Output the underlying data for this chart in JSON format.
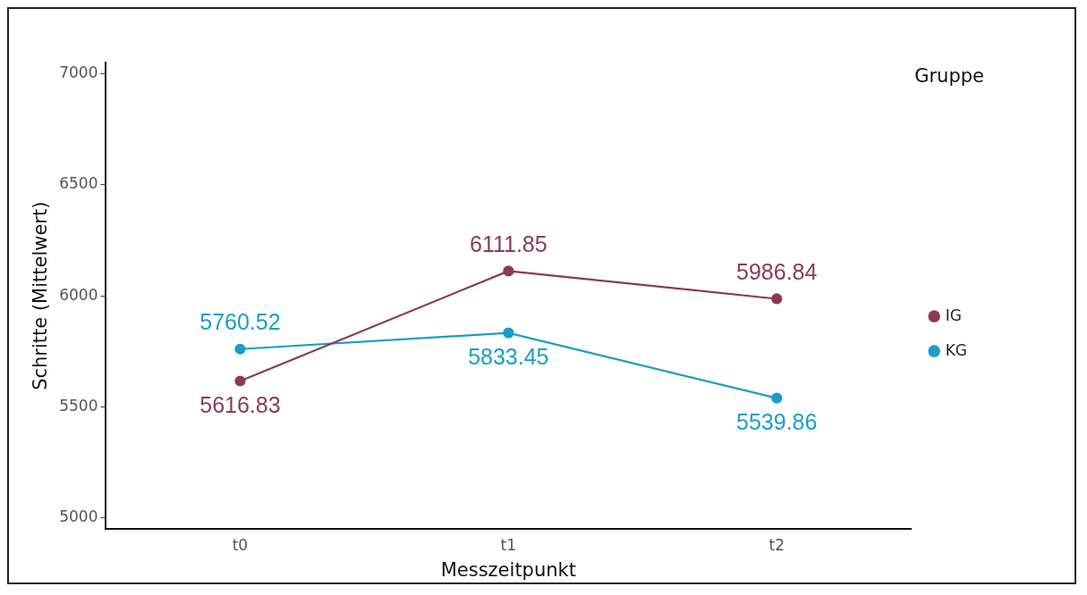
{
  "chart_data": {
    "type": "line",
    "xlabel": "Messzeitpunkt",
    "ylabel": "Schritte (Mittelwert)",
    "legend_title": "Gruppe",
    "categories": [
      "t0",
      "t1",
      "t2"
    ],
    "series": [
      {
        "name": "IG",
        "color": "#8b3a55",
        "values": [
          5616.83,
          6111.85,
          5986.84
        ]
      },
      {
        "name": "KG",
        "color": "#1a9dc8",
        "values": [
          5760.52,
          5833.45,
          5539.86
        ]
      }
    ],
    "ylim": [
      4950,
      7050
    ],
    "yticks": [
      5000,
      5500,
      6000,
      6500,
      7000
    ],
    "grid": false,
    "legend": "right",
    "marker": "circle",
    "line_style": "solid",
    "data_labels": true
  }
}
